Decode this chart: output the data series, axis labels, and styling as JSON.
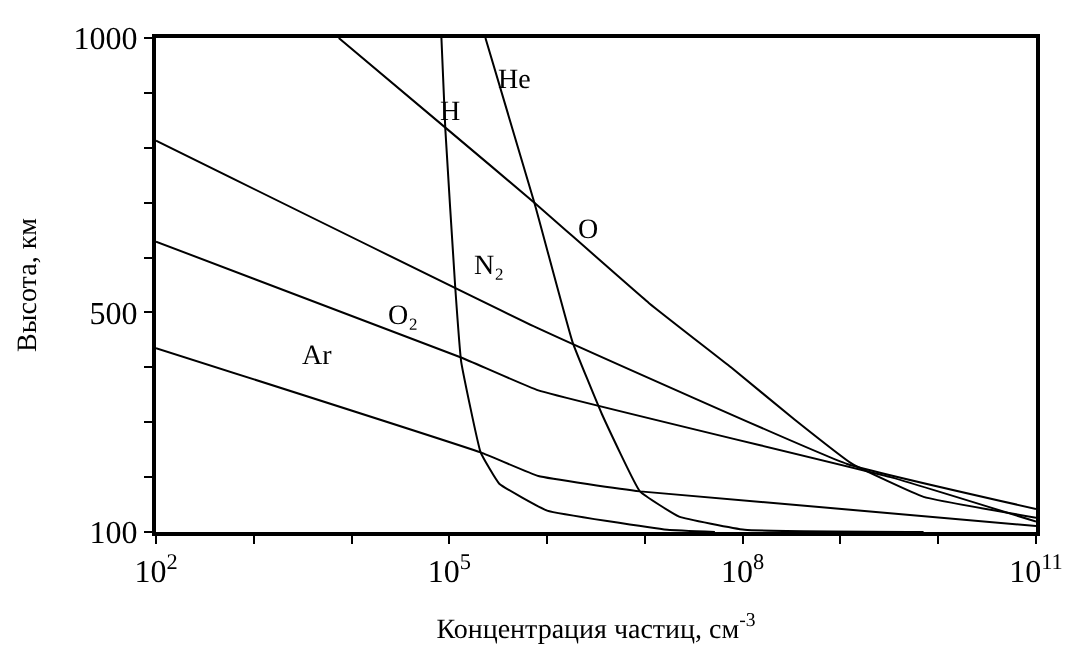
{
  "chart_data": {
    "type": "line",
    "xlabel": "Концентрация частиц, см$^{-3}$",
    "ylabel": "Высота, км",
    "log": "x",
    "marker": "none",
    "line_style": "solid",
    "xlim": [
      100,
      100000000000
    ],
    "xticks": [
      {
        "value": 100,
        "label": "10$^{2}$"
      },
      {
        "value": 1000,
        "label": null
      },
      {
        "value": 10000,
        "label": null
      },
      {
        "value": 100000,
        "label": "10$^{5}$"
      },
      {
        "value": 1000000,
        "label": null
      },
      {
        "value": 10000000,
        "label": null
      },
      {
        "value": 100000000,
        "label": "10$^{8}$"
      },
      {
        "value": 1000000000,
        "label": null
      },
      {
        "value": 10000000000,
        "label": null
      },
      {
        "value": 100000000000,
        "label": "10$^{11}$"
      }
    ],
    "ylim": [
      100,
      1000
    ],
    "yticks": [
      100,
      {
        "value": 200,
        "label": null
      },
      {
        "value": 300,
        "label": null
      },
      {
        "value": 400,
        "label": null
      },
      500,
      {
        "value": 600,
        "label": null
      },
      {
        "value": 700,
        "label": null
      },
      {
        "value": 800,
        "label": null
      },
      {
        "value": 900,
        "label": null
      },
      1000
    ],
    "series": [
      {
        "name": "H",
        "color": "#000000",
        "x": [
          83000,
          91000,
          115000,
          132000,
          209000,
          324000,
          1000000,
          17000000,
          52000000
        ],
        "values": [
          1000,
          834,
          545,
          411,
          245,
          188,
          139,
          104,
          100
        ]
      },
      {
        "name": "He",
        "color": "#000000",
        "x": [
          234000,
          741000,
          1820000,
          3630000,
          8910000,
          22400000,
          105000000,
          7080000000
        ],
        "values": [
          1000,
          700,
          446,
          315,
          174,
          128,
          104,
          100
        ]
      },
      {
        "name": "O",
        "color": "#000000",
        "x": [
          7400,
          95000,
          741000,
          11200000,
          75900000,
          339000000,
          1320000000,
          7080000000,
          100000000000
        ],
        "values": [
          1000,
          834,
          700,
          516,
          400,
          305,
          224,
          164,
          126
        ]
      },
      {
        "name": "N₂",
        "color": "#000000",
        "x": [
          100,
          813000,
          1170000000,
          100000000000
        ],
        "values": [
          813,
          471,
          224,
          142
        ]
      },
      {
        "name": "O₂",
        "color": "#000000",
        "x": [
          100,
          132000,
          813000,
          3390000000,
          100000000000
        ],
        "values": [
          629,
          418,
          358,
          199,
          119
        ]
      },
      {
        "name": "Ar",
        "color": "#000000",
        "x": [
          100,
          209000,
          813000,
          8910000,
          100000000000
        ],
        "values": [
          435,
          245,
          202,
          174,
          111
        ]
      }
    ]
  }
}
